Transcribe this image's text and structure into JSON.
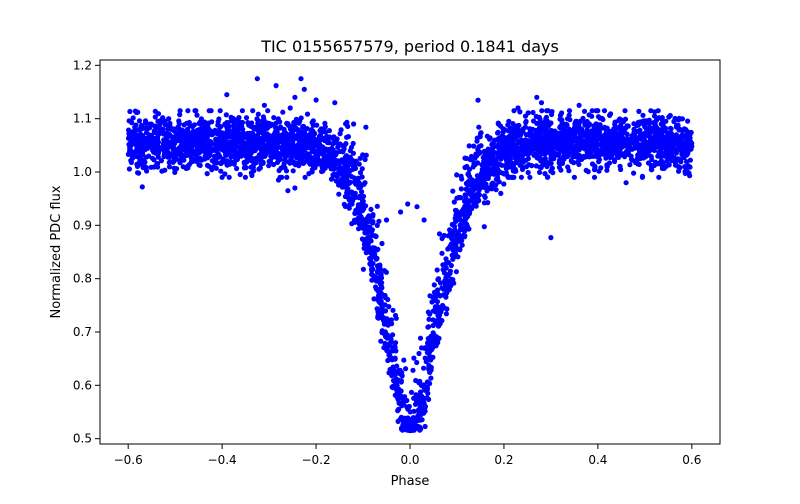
{
  "chart_data": {
    "type": "scatter",
    "title": "TIC 0155657579, period 0.1841 days",
    "xlabel": "Phase",
    "ylabel": "Normalized PDC flux",
    "xlim": [
      -0.66,
      0.66
    ],
    "ylim": [
      0.49,
      1.21
    ],
    "x_ticks": [
      -0.6,
      -0.4,
      -0.2,
      0.0,
      0.2,
      0.4,
      0.6
    ],
    "x_tick_labels": [
      "−0.6",
      "−0.4",
      "−0.2",
      "0.0",
      "0.2",
      "0.4",
      "0.6"
    ],
    "y_ticks": [
      0.5,
      0.6,
      0.7,
      0.8,
      0.9,
      1.0,
      1.1,
      1.2
    ],
    "y_tick_labels": [
      "0.5",
      "0.6",
      "0.7",
      "0.8",
      "0.9",
      "1.0",
      "1.1",
      "1.2"
    ],
    "grid": false,
    "marker_color": "#0000ff",
    "series": [
      {
        "phase_range": [
          -0.6,
          0.6
        ],
        "baseline_flux": 1.055,
        "baseline_scatter": 0.025,
        "eclipse_center_phase": 0.0,
        "eclipse_min_flux": 0.52,
        "eclipse_half_width_phase": 0.1,
        "outliers": [
          {
            "x": -0.325,
            "y": 1.175
          },
          {
            "x": -0.285,
            "y": 1.162
          },
          {
            "x": -0.232,
            "y": 1.175
          },
          {
            "x": -0.225,
            "y": 1.155
          },
          {
            "x": -0.245,
            "y": 1.14
          },
          {
            "x": -0.255,
            "y": 1.12
          },
          {
            "x": -0.39,
            "y": 1.145
          },
          {
            "x": -0.2,
            "y": 1.135
          },
          {
            "x": -0.16,
            "y": 1.13
          },
          {
            "x": -0.31,
            "y": 1.125
          },
          {
            "x": -0.12,
            "y": 1.09
          },
          {
            "x": 0.27,
            "y": 1.14
          },
          {
            "x": 0.28,
            "y": 1.13
          },
          {
            "x": 0.36,
            "y": 1.125
          },
          {
            "x": 0.23,
            "y": 1.12
          },
          {
            "x": 0.3,
            "y": 0.877
          },
          {
            "x": -0.57,
            "y": 0.972
          },
          {
            "x": -0.4,
            "y": 0.99
          },
          {
            "x": -0.28,
            "y": 0.985
          },
          {
            "x": -0.26,
            "y": 0.965
          },
          {
            "x": -0.245,
            "y": 0.97
          },
          {
            "x": 0.46,
            "y": 0.98
          },
          {
            "x": 0.35,
            "y": 0.99
          },
          {
            "x": -0.005,
            "y": 0.94
          },
          {
            "x": 0.015,
            "y": 0.935
          },
          {
            "x": -0.02,
            "y": 0.925
          },
          {
            "x": 0.03,
            "y": 0.91
          },
          {
            "x": -0.05,
            "y": 0.91
          }
        ]
      }
    ]
  }
}
